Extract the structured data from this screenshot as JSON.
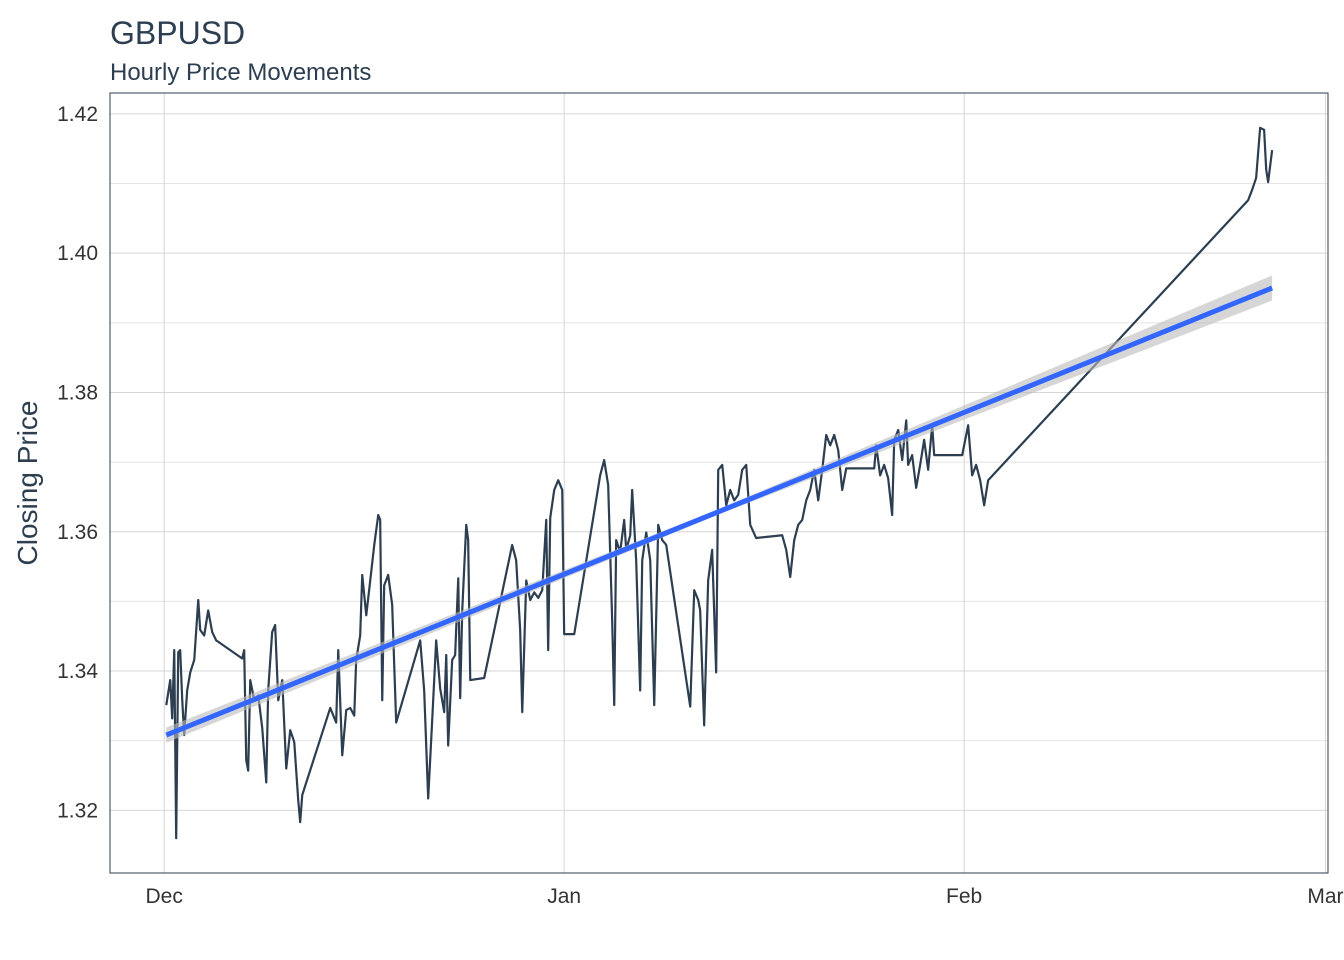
{
  "chart_data": {
    "type": "line",
    "title": "GBPUSD",
    "subtitle": "Hourly Price Movements",
    "ylabel": "Closing Price",
    "xlim": [
      -4.2,
      90.2
    ],
    "ylim": [
      1.311,
      1.423
    ],
    "xticks": [
      {
        "value": 0,
        "label": "Dec"
      },
      {
        "value": 31,
        "label": "Jan"
      },
      {
        "value": 62,
        "label": "Feb"
      },
      {
        "value": 90,
        "label": "Mar"
      }
    ],
    "yticks": [
      1.32,
      1.34,
      1.36,
      1.38,
      {
        "value": 1.4,
        "label": "1.40"
      },
      1.42
    ],
    "yminor": [
      1.33,
      1.35,
      1.37,
      1.39,
      1.41
    ],
    "grid": true,
    "x": [
      0.16,
      0.47,
      0.62,
      0.78,
      0.93,
      1.09,
      1.24,
      1.4,
      1.55,
      1.78,
      2.02,
      2.33,
      2.64,
      2.79,
      3.1,
      3.41,
      3.72,
      4.03,
      6.05,
      6.2,
      6.36,
      6.51,
      6.67,
      6.98,
      7.29,
      7.6,
      7.91,
      8.06,
      8.37,
      8.6,
      8.84,
      9.15,
      9.46,
      9.77,
      10.08,
      10.39,
      10.54,
      10.7,
      12.87,
      13.33,
      13.49,
      13.8,
      14.11,
      14.42,
      14.73,
      14.88,
      15.19,
      15.35,
      15.66,
      15.97,
      16.28,
      16.59,
      16.74,
      16.9,
      17.05,
      17.36,
      17.67,
      17.98,
      19.84,
      20.15,
      20.46,
      20.77,
      21.08,
      21.39,
      21.7,
      21.86,
      22.01,
      22.32,
      22.55,
      22.79,
      22.94,
      23.1,
      23.41,
      23.56,
      23.72,
      24.8,
      26.97,
      27.28,
      27.59,
      27.75,
      28.06,
      28.37,
      28.68,
      28.99,
      29.3,
      29.61,
      29.76,
      29.92,
      30.23,
      30.54,
      30.85,
      31.0,
      31.78,
      33.79,
      34.1,
      34.41,
      34.72,
      34.88,
      35.03,
      35.34,
      35.65,
      35.81,
      36.12,
      36.27,
      36.58,
      36.89,
      37.05,
      37.36,
      37.67,
      37.98,
      38.29,
      38.6,
      38.91,
      40.77,
      41.08,
      41.39,
      41.54,
      41.85,
      42.16,
      42.47,
      42.78,
      42.94,
      43.25,
      43.56,
      43.87,
      44.18,
      44.49,
      44.8,
      45.11,
      45.42,
      45.88,
      47.9,
      48.21,
      48.52,
      48.83,
      49.14,
      49.45,
      49.76,
      50.07,
      50.38,
      50.69,
      51.0,
      51.31,
      51.62,
      51.93,
      52.24,
      52.55,
      52.86,
      55.03,
      55.18,
      55.49,
      55.8,
      56.11,
      56.42,
      56.58,
      56.89,
      57.2,
      57.51,
      57.66,
      57.97,
      58.28,
      58.59,
      58.9,
      59.21,
      59.52,
      59.68,
      61.85,
      62.31,
      62.62,
      62.93,
      63.24,
      63.55,
      63.86,
      84.01,
      84.32,
      84.63,
      84.94,
      85.25,
      85.41,
      85.56,
      85.87
    ],
    "series": [
      {
        "color": "#2c3e50",
        "values": [
          1.3351,
          1.3387,
          1.3332,
          1.343,
          1.316,
          1.3427,
          1.343,
          1.3358,
          1.3308,
          1.3372,
          1.3398,
          1.3416,
          1.3502,
          1.3459,
          1.3451,
          1.3487,
          1.3456,
          1.3444,
          1.3418,
          1.343,
          1.3272,
          1.3257,
          1.3387,
          1.3358,
          1.3365,
          1.3318,
          1.324,
          1.3372,
          1.3456,
          1.3466,
          1.3358,
          1.3387,
          1.326,
          1.3315,
          1.3298,
          1.3214,
          1.3183,
          1.3222,
          1.3347,
          1.3326,
          1.343,
          1.3279,
          1.3344,
          1.3347,
          1.3336,
          1.3416,
          1.3451,
          1.3538,
          1.348,
          1.353,
          1.3581,
          1.3624,
          1.3617,
          1.3358,
          1.3523,
          1.3538,
          1.3495,
          1.3326,
          1.3444,
          1.3372,
          1.3217,
          1.3329,
          1.3444,
          1.3375,
          1.3341,
          1.3423,
          1.3293,
          1.3416,
          1.3423,
          1.3533,
          1.3361,
          1.3487,
          1.361,
          1.3588,
          1.3387,
          1.339,
          1.3581,
          1.3559,
          1.3459,
          1.3341,
          1.353,
          1.3502,
          1.3513,
          1.3505,
          1.3516,
          1.3617,
          1.343,
          1.362,
          1.366,
          1.3674,
          1.366,
          1.3453,
          1.3453,
          1.3681,
          1.3703,
          1.3667,
          1.3473,
          1.3351,
          1.3588,
          1.3571,
          1.3617,
          1.3574,
          1.3595,
          1.366,
          1.3559,
          1.3372,
          1.3559,
          1.3599,
          1.3559,
          1.3351,
          1.361,
          1.3588,
          1.3581,
          1.3349,
          1.3516,
          1.3502,
          1.3487,
          1.3322,
          1.353,
          1.3574,
          1.3398,
          1.3689,
          1.3696,
          1.3638,
          1.366,
          1.3645,
          1.3653,
          1.3689,
          1.3696,
          1.361,
          1.3591,
          1.3595,
          1.3574,
          1.3535,
          1.3588,
          1.361,
          1.3617,
          1.3645,
          1.366,
          1.3689,
          1.3645,
          1.3689,
          1.3739,
          1.3724,
          1.3739,
          1.3717,
          1.366,
          1.3691,
          1.3691,
          1.3724,
          1.3681,
          1.3696,
          1.3677,
          1.3624,
          1.3732,
          1.3746,
          1.3703,
          1.376,
          1.3696,
          1.371,
          1.3663,
          1.3696,
          1.3732,
          1.3689,
          1.3753,
          1.371,
          1.371,
          1.3753,
          1.3681,
          1.3696,
          1.3674,
          1.3638,
          1.3674,
          1.4076,
          1.4091,
          1.4108,
          1.418,
          1.4177,
          1.412,
          1.4102,
          1.4148
        ]
      }
    ],
    "trend": {
      "color": "#3366ff",
      "band_color": "#bbbbbb",
      "x": [
        0.16,
        43,
        85.87
      ],
      "values": [
        1.3308,
        1.3629,
        1.395
      ],
      "lower": [
        1.3297,
        1.3625,
        1.3932
      ],
      "upper": [
        1.3319,
        1.3633,
        1.3968
      ]
    }
  }
}
